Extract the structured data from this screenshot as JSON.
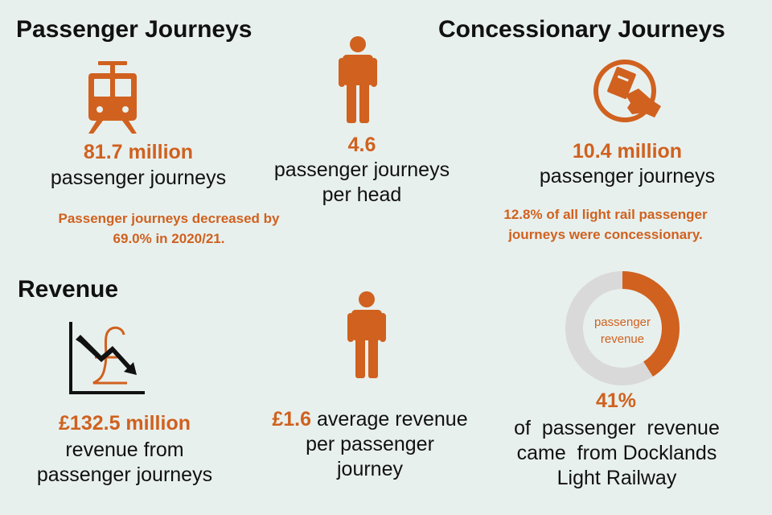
{
  "colors": {
    "accent": "#d0611f",
    "background": "#e8f0ed",
    "ring_grey": "#d9d9d9"
  },
  "passenger": {
    "heading": "Passenger Journeys",
    "journeys_value": "81.7 million",
    "journeys_label": "passenger journeys",
    "note_line1": "Passenger journeys decreased by",
    "note_line2": "69.0% in 2020/21.",
    "icon": "tram-icon"
  },
  "per_head": {
    "value": "4.6",
    "label_line1": "passenger journeys",
    "label_line2": "per head",
    "icon": "person-icon"
  },
  "concessionary": {
    "heading": "Concessionary Journeys",
    "value": "10.4 million",
    "label": "passenger journeys",
    "note_line1": "12.8% of all light rail passenger",
    "note_line2": "journeys were concessionary.",
    "icon": "concession-card-icon"
  },
  "revenue": {
    "heading": "Revenue",
    "value": "£132.5 million",
    "label_line1": "revenue from",
    "label_line2": "passenger journeys",
    "icon": "pound-decrease-icon"
  },
  "avg_revenue": {
    "value": "£1.6",
    "label_line1": " average revenue",
    "label_line2": "per passenger",
    "label_line3": "journey",
    "icon": "person-icon"
  },
  "dlr_share": {
    "donut_label_line1": "passenger",
    "donut_label_line2": "revenue",
    "share_fraction": 0.41,
    "value": "41%",
    "label_line1": "of  passenger  revenue",
    "label_line2": "came  from Docklands",
    "label_line3": "Light Railway"
  }
}
